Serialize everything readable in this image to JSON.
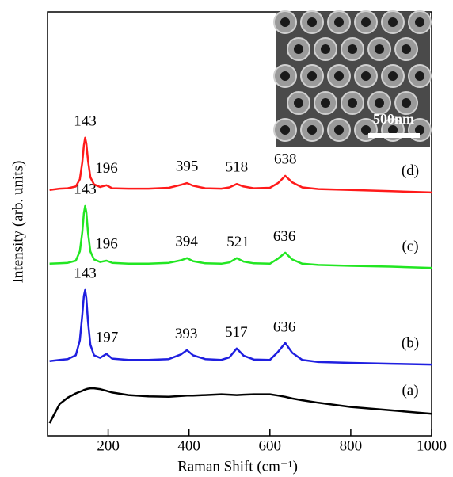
{
  "chart_data": {
    "type": "line",
    "x_label": "Raman Shift (cm⁻¹)",
    "y_label": "Intensity (arb. units)",
    "xlim": [
      50,
      1000
    ],
    "xticks": [
      200,
      400,
      600,
      800,
      1000
    ],
    "ylim": [
      0,
      100
    ],
    "x": [
      55,
      80,
      100,
      120,
      130,
      136,
      140,
      143,
      146,
      150,
      156,
      165,
      180,
      196,
      210,
      250,
      300,
      350,
      380,
      395,
      410,
      440,
      480,
      500,
      518,
      535,
      560,
      600,
      620,
      638,
      655,
      680,
      720,
      800,
      900,
      1000
    ],
    "series": [
      {
        "name": "(a)",
        "color": "#000000",
        "peaks": [],
        "values": [
          3.0,
          7.5,
          9.0,
          10.0,
          10.4,
          10.6,
          10.8,
          10.9,
          11.0,
          11.1,
          11.2,
          11.2,
          11.0,
          10.6,
          10.2,
          9.6,
          9.3,
          9.2,
          9.4,
          9.5,
          9.5,
          9.6,
          9.8,
          9.7,
          9.6,
          9.7,
          9.8,
          9.8,
          9.5,
          9.2,
          8.8,
          8.4,
          7.8,
          6.8,
          6.0,
          5.2
        ]
      },
      {
        "name": "(b)",
        "color": "#1f1fe0",
        "peaks": [
          143,
          197,
          393,
          517,
          636
        ],
        "values": [
          17.6,
          17.9,
          18.1,
          19.0,
          22.5,
          28.5,
          33.0,
          34.4,
          32.5,
          27.0,
          21.5,
          19.0,
          18.4,
          19.3,
          18.2,
          17.9,
          17.9,
          18.1,
          19.2,
          20.2,
          19.0,
          18.1,
          17.9,
          18.5,
          20.6,
          18.9,
          18.0,
          17.9,
          19.8,
          21.9,
          19.6,
          17.9,
          17.4,
          17.2,
          17.0,
          16.8
        ]
      },
      {
        "name": "(c)",
        "color": "#22e622",
        "peaks": [
          143,
          196,
          394,
          521,
          636
        ],
        "values": [
          40.6,
          40.7,
          40.8,
          41.3,
          43.5,
          48.0,
          52.5,
          54.2,
          52.8,
          48.0,
          43.5,
          41.6,
          41.0,
          41.3,
          40.8,
          40.6,
          40.6,
          40.8,
          41.4,
          41.9,
          41.2,
          40.7,
          40.6,
          40.9,
          41.9,
          41.1,
          40.7,
          40.6,
          41.8,
          43.2,
          41.6,
          40.6,
          40.3,
          40.1,
          39.9,
          39.6
        ]
      },
      {
        "name": "(d)",
        "color": "#ff1a1a",
        "peaks": [
          143,
          196,
          395,
          518,
          638
        ],
        "values": [
          58.0,
          58.3,
          58.4,
          58.8,
          60.5,
          64.5,
          68.5,
          70.3,
          69.0,
          65.0,
          61.0,
          59.3,
          58.7,
          59.1,
          58.4,
          58.3,
          58.3,
          58.5,
          59.2,
          59.6,
          59.0,
          58.4,
          58.3,
          58.6,
          59.4,
          58.8,
          58.4,
          58.5,
          59.6,
          61.3,
          59.8,
          58.6,
          58.2,
          58.0,
          57.7,
          57.4
        ]
      }
    ],
    "inset_scale_label": "500nm"
  }
}
